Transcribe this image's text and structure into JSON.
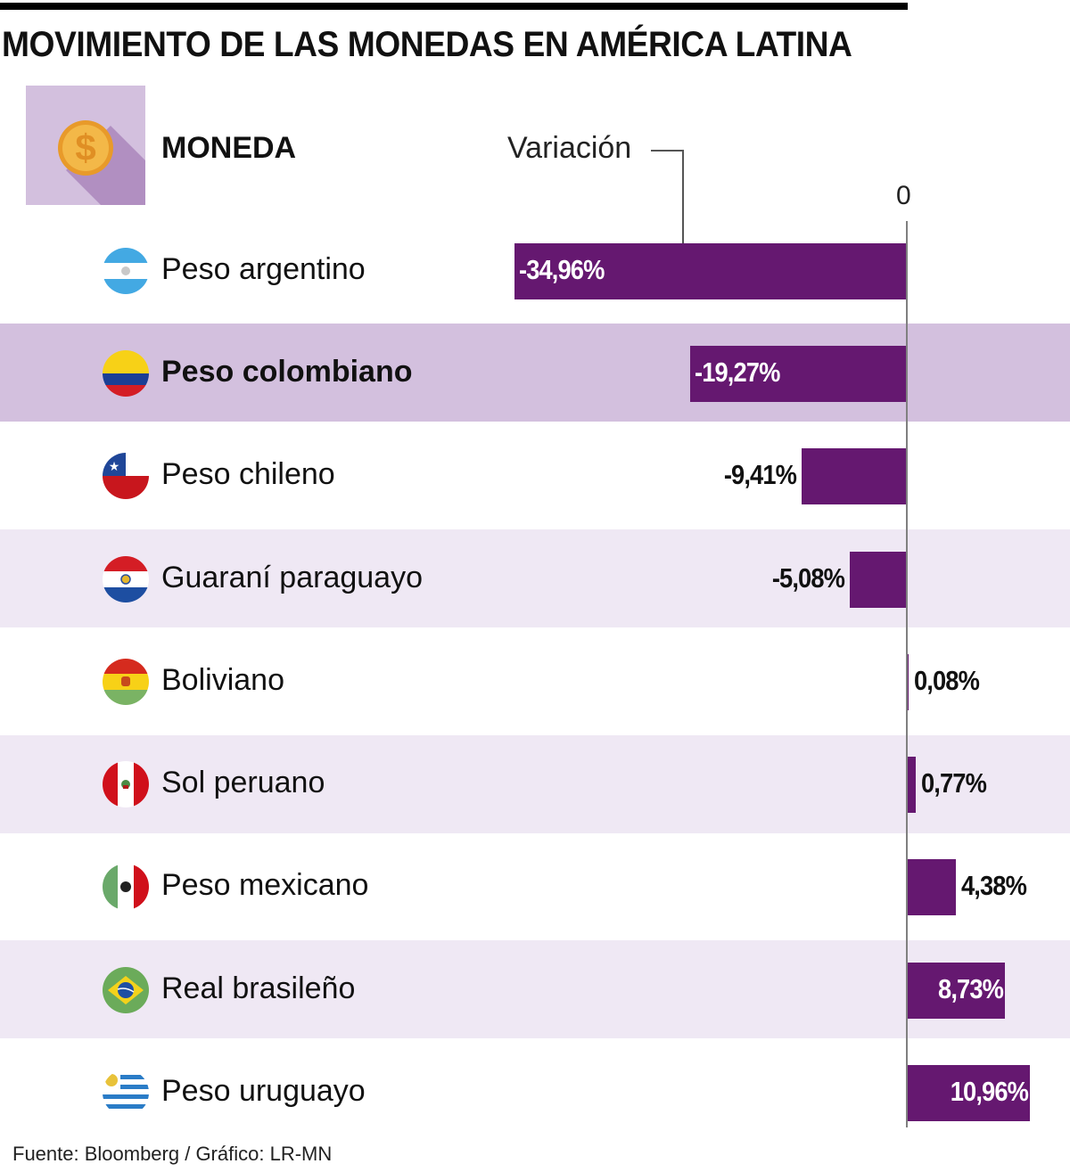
{
  "title": "MOVIMIENTO DE LAS MONEDAS EN AMÉRICA LATINA",
  "header": {
    "icon": "dollar-coin-icon",
    "moneda_label": "MONEDA",
    "variacion_label": "Variación",
    "zero_label": "0"
  },
  "colors": {
    "bar": "#651870",
    "band_highlight": "#d3c0de",
    "band_light": "#efe8f4",
    "axis": "#808080",
    "icon_bg": "#d3c0de",
    "icon_shadow": "#b18fc1",
    "coin": "#f0a830"
  },
  "chart_data": {
    "type": "bar",
    "orientation": "horizontal",
    "title": "MOVIMIENTO DE LAS MONEDAS EN AMÉRICA LATINA",
    "xlabel": "Variación",
    "ylabel": "Moneda",
    "zero_label": "0",
    "categories": [
      "Peso argentino",
      "Peso colombiano",
      "Peso chileno",
      "Guaraní paraguayo",
      "Boliviano",
      "Sol peruano",
      "Peso mexicano",
      "Real brasileño",
      "Peso uruguayo"
    ],
    "values": [
      -34.96,
      -19.27,
      -9.41,
      -5.08,
      0.08,
      0.77,
      4.38,
      8.73,
      10.96
    ],
    "labels": [
      "-34,96%",
      "-19,27%",
      "-9,41%",
      "-5,08%",
      "0,08%",
      "0,77%",
      "4,38%",
      "8,73%",
      "10,96%"
    ],
    "unit": "%",
    "highlighted": "Peso colombiano",
    "grid": false,
    "legend": "none"
  },
  "rows": [
    {
      "label": "Peso argentino",
      "flag": "argentina-flag-icon",
      "band": "none",
      "bold": false
    },
    {
      "label": "Peso colombiano",
      "flag": "colombia-flag-icon",
      "band": "highlight",
      "bold": true
    },
    {
      "label": "Peso chileno",
      "flag": "chile-flag-icon",
      "band": "none",
      "bold": false
    },
    {
      "label": "Guaraní paraguayo",
      "flag": "paraguay-flag-icon",
      "band": "light",
      "bold": false
    },
    {
      "label": "Boliviano",
      "flag": "bolivia-flag-icon",
      "band": "none",
      "bold": false
    },
    {
      "label": "Sol peruano",
      "flag": "peru-flag-icon",
      "band": "light",
      "bold": false
    },
    {
      "label": "Peso mexicano",
      "flag": "mexico-flag-icon",
      "band": "none",
      "bold": false
    },
    {
      "label": "Real brasileño",
      "flag": "brazil-flag-icon",
      "band": "light",
      "bold": false
    },
    {
      "label": "Peso uruguayo",
      "flag": "uruguay-flag-icon",
      "band": "none",
      "bold": false
    }
  ],
  "source": "Fuente: Bloomberg / Gráfico: LR-MN"
}
